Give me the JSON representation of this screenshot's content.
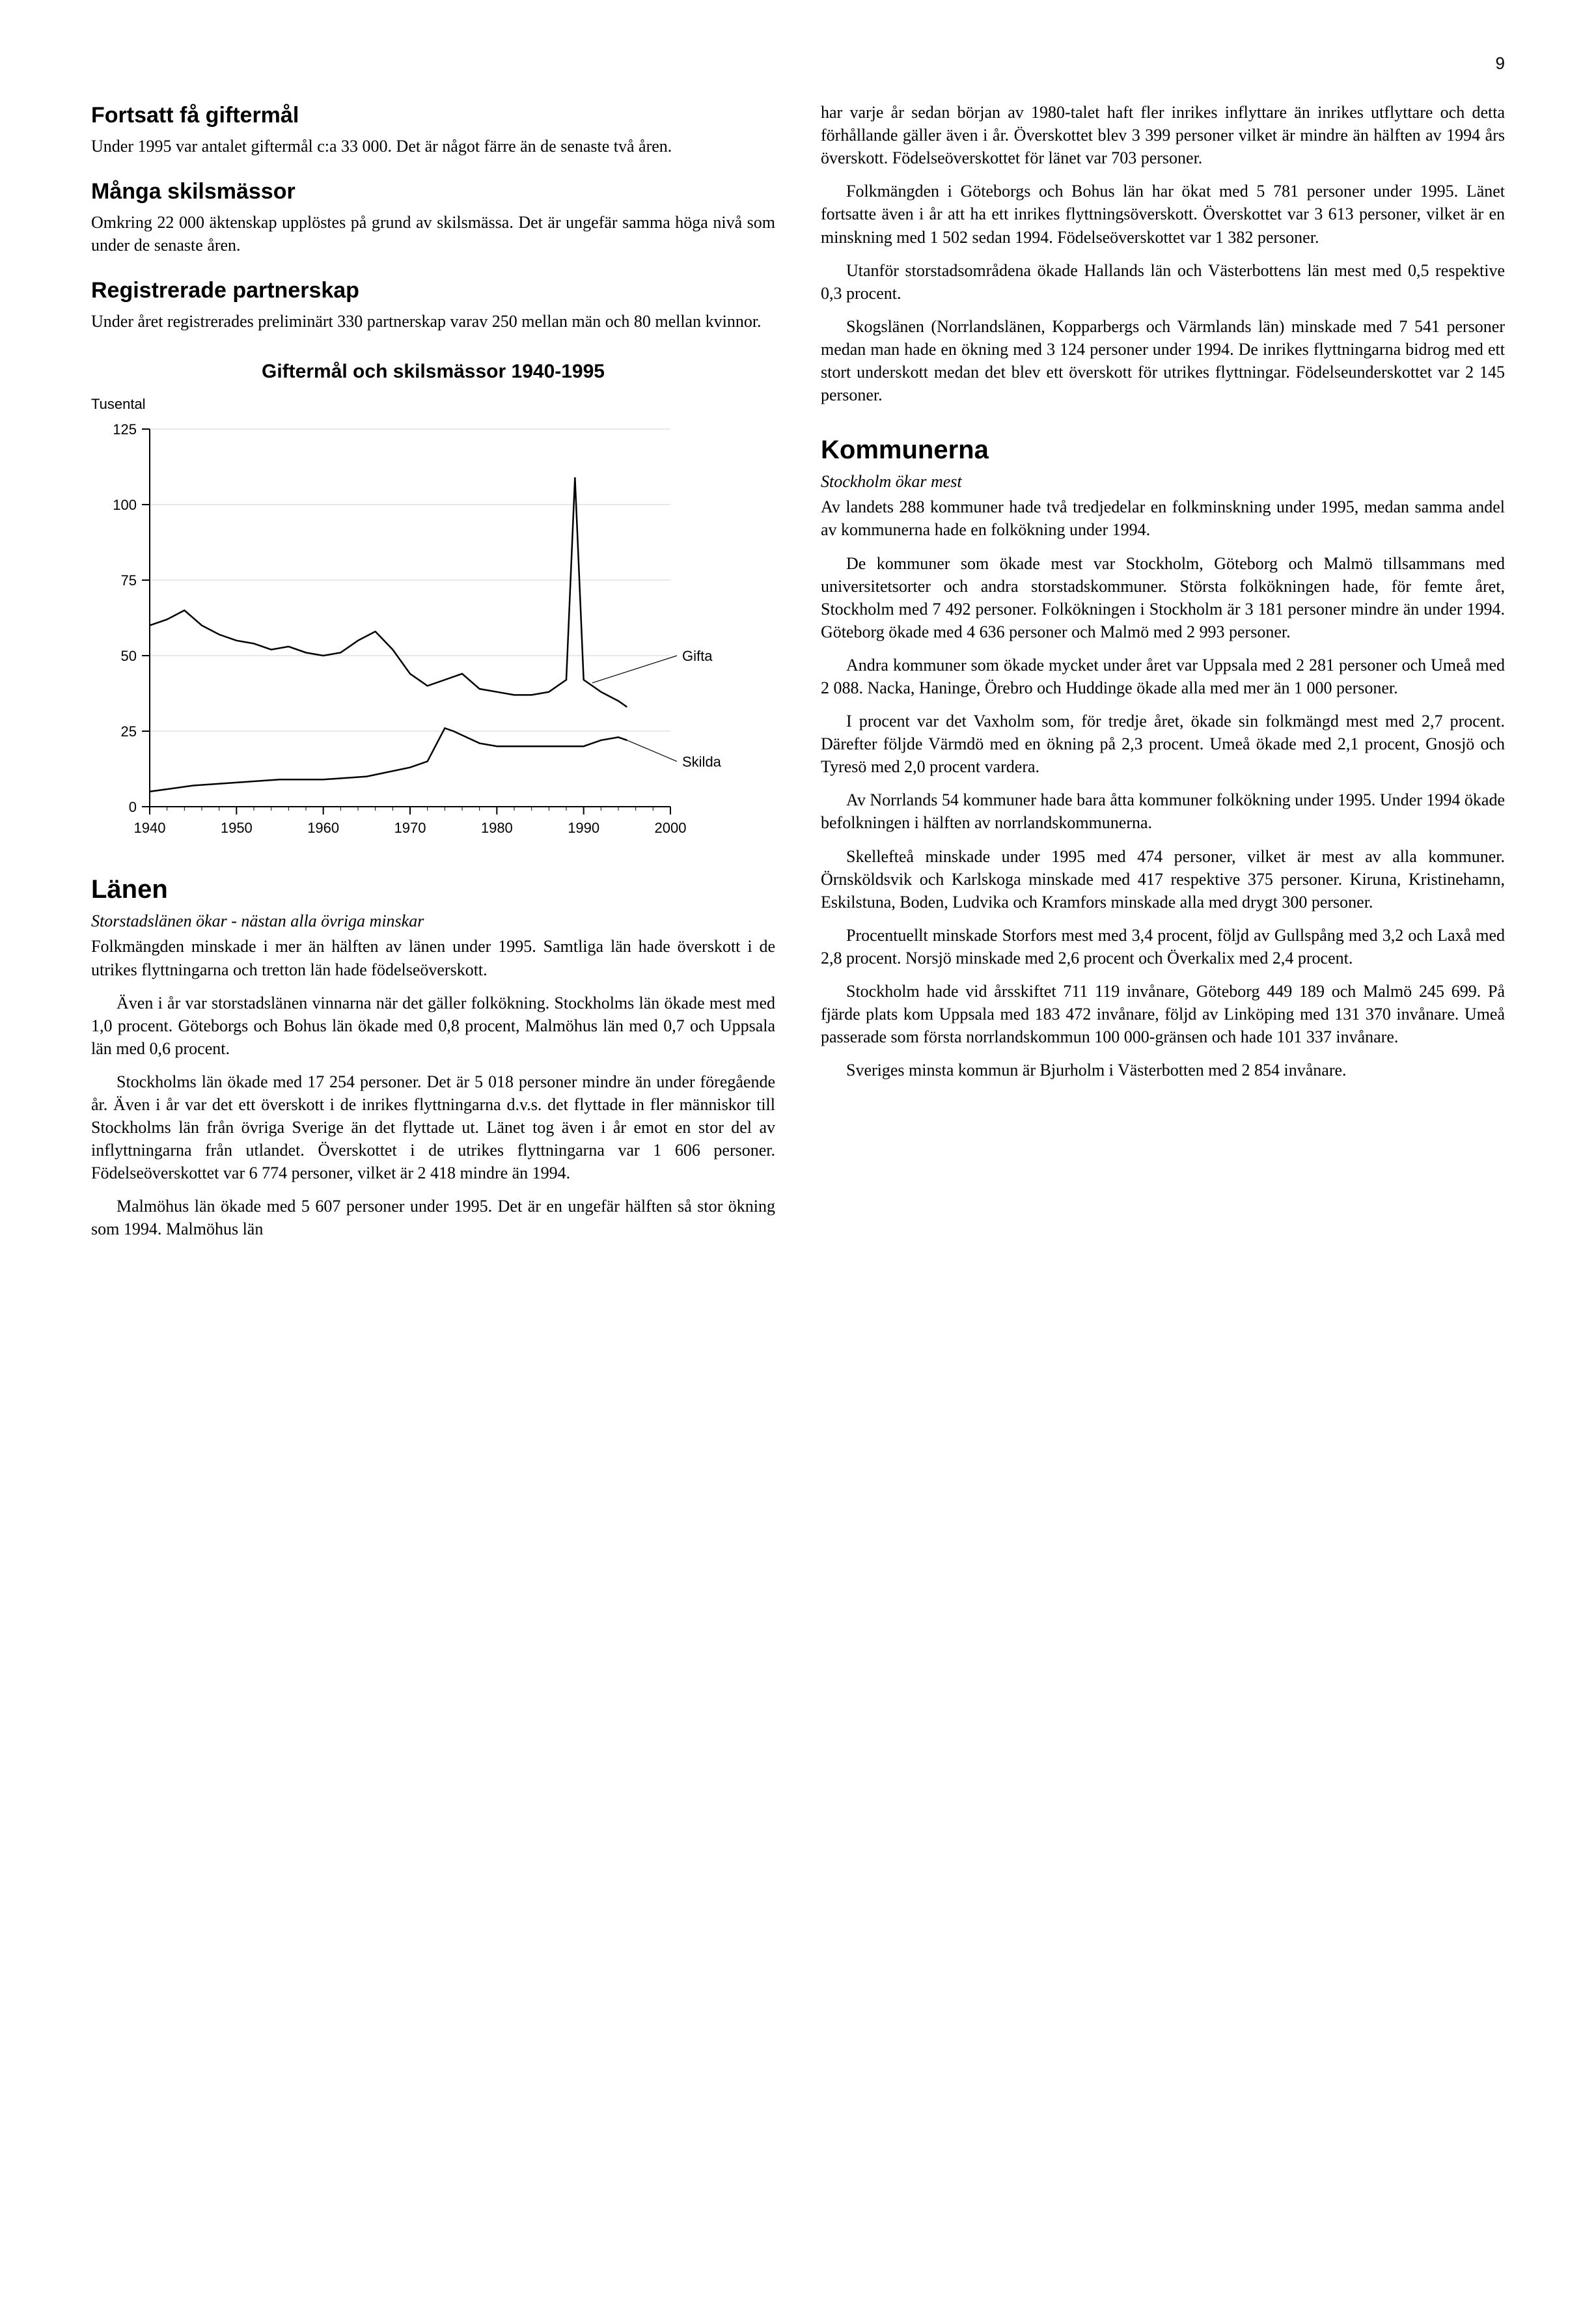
{
  "page_number": "9",
  "left": {
    "s1": {
      "title": "Fortsatt få giftermål",
      "body": "Under 1995 var antalet giftermål c:a 33 000. Det är något färre än de senaste två åren."
    },
    "s2": {
      "title": "Många skilsmässor",
      "body": "Omkring 22 000 äktenskap upplöstes på grund av skilsmässa. Det är ungefär samma höga nivå som under de senaste åren."
    },
    "s3": {
      "title": "Registrerade partnerskap",
      "body": "Under året registrerades preliminärt 330 partnerskap varav 250 mellan män och 80 mellan kvinnor."
    },
    "chart": {
      "type": "line",
      "title": "Giftermål och skilsmässor 1940-1995",
      "ylabel": "Tusental",
      "xlim": [
        1940,
        2000
      ],
      "ylim": [
        0,
        125
      ],
      "xtick_step": 10,
      "ytick_step": 25,
      "grid_color": "#d0d0d0",
      "axis_color": "#000000",
      "background_color": "#ffffff",
      "tick_fontsize": 22,
      "line_width": 2.5,
      "series": [
        {
          "name": "Gifta",
          "label": "Gifta",
          "color": "#000000",
          "data": [
            [
              1940,
              60
            ],
            [
              1942,
              62
            ],
            [
              1944,
              65
            ],
            [
              1946,
              60
            ],
            [
              1948,
              57
            ],
            [
              1950,
              55
            ],
            [
              1952,
              54
            ],
            [
              1954,
              52
            ],
            [
              1956,
              53
            ],
            [
              1958,
              51
            ],
            [
              1960,
              50
            ],
            [
              1962,
              51
            ],
            [
              1964,
              55
            ],
            [
              1966,
              58
            ],
            [
              1968,
              52
            ],
            [
              1970,
              44
            ],
            [
              1972,
              40
            ],
            [
              1974,
              42
            ],
            [
              1976,
              44
            ],
            [
              1978,
              39
            ],
            [
              1980,
              38
            ],
            [
              1982,
              37
            ],
            [
              1984,
              37
            ],
            [
              1986,
              38
            ],
            [
              1988,
              42
            ],
            [
              1989,
              109
            ],
            [
              1990,
              42
            ],
            [
              1992,
              38
            ],
            [
              1994,
              35
            ],
            [
              1995,
              33
            ]
          ]
        },
        {
          "name": "Skilda",
          "label": "Skilda",
          "color": "#000000",
          "data": [
            [
              1940,
              5
            ],
            [
              1945,
              7
            ],
            [
              1950,
              8
            ],
            [
              1955,
              9
            ],
            [
              1960,
              9
            ],
            [
              1965,
              10
            ],
            [
              1970,
              13
            ],
            [
              1972,
              15
            ],
            [
              1974,
              26
            ],
            [
              1975,
              25
            ],
            [
              1978,
              21
            ],
            [
              1980,
              20
            ],
            [
              1985,
              20
            ],
            [
              1990,
              20
            ],
            [
              1992,
              22
            ],
            [
              1994,
              23
            ],
            [
              1995,
              22
            ]
          ]
        }
      ],
      "series_labels": {
        "gifta": "Gifta",
        "skilda": "Skilda"
      }
    },
    "s4": {
      "title": "Länen",
      "subtitle": "Storstadslänen ökar - nästan alla övriga minskar",
      "p1": "Folkmängden minskade i mer än hälften av länen under 1995. Samtliga län hade överskott i de utrikes flyttningarna och tretton län hade födelseöverskott.",
      "p2": "Även i år var storstadslänen vinnarna när det gäller folkökning. Stockholms län ökade mest med 1,0 procent. Göteborgs och Bohus län ökade med 0,8 procent, Malmöhus län med 0,7 och Uppsala län med 0,6 procent.",
      "p3": "Stockholms län ökade med 17 254 personer. Det är 5 018 personer mindre än under föregående år. Även i år var det ett överskott i de inrikes flyttningarna  d.v.s. det flyttade in fler människor till Stockholms län från övriga Sverige än det flyttade ut. Länet tog även i år emot en stor del av inflyttningarna från utlandet. Överskottet i de utrikes flyttningarna var 1 606 personer. Födelseöverskottet var 6 774 personer, vilket är 2 418 mindre än 1994.",
      "p4": "Malmöhus län ökade med 5 607 personer under 1995. Det är en ungefär hälften så stor ökning som 1994. Malmöhus län"
    }
  },
  "right": {
    "p1": "har varje år sedan början av 1980-talet haft fler inrikes inflyttare än inrikes utflyttare och detta förhållande gäller även i år. Överskottet blev 3 399 personer vilket är mindre än hälften av 1994 års överskott. Födelseöverskottet för länet var 703 personer.",
    "p2": "Folkmängden i Göteborgs och Bohus län har ökat med 5 781 personer under 1995. Länet fortsatte även i år att ha ett inrikes flyttningsöverskott. Överskottet var 3 613 personer, vilket är en minskning med 1 502 sedan 1994. Födelseöverskottet var 1 382 personer.",
    "p3": "Utanför storstadsområdena ökade Hallands län och Västerbottens län  mest med  0,5 respektive 0,3 procent.",
    "p4": "Skogslänen (Norrlandslänen, Kopparbergs och Värmlands län) minskade med 7 541 personer medan man hade en ökning med 3 124 personer under 1994. De inrikes flyttningarna bidrog med ett stort underskott medan det blev ett överskott för utrikes flyttningar. Födelseunderskottet var 2 145 personer.",
    "s5": {
      "title": "Kommunerna",
      "subtitle": "Stockholm ökar mest",
      "p1": "Av landets 288 kommuner hade två tredjedelar en folkminskning under 1995, medan samma andel av kommunerna hade en folkökning under 1994.",
      "p2": "De kommuner som ökade mest var Stockholm, Göteborg och Malmö tillsammans med universitetsorter och andra storstadskommuner. Största folkökningen hade, för femte året, Stockholm med 7 492 personer. Folkökningen i Stockholm är 3 181 personer mindre  än under 1994. Göteborg ökade med 4 636 personer och Malmö med 2 993 personer.",
      "p3": "Andra kommuner som ökade mycket under året var Uppsala med 2 281 personer och Umeå med 2 088. Nacka, Haninge, Örebro och Huddinge ökade alla med mer än 1 000 personer.",
      "p4": "I procent var det Vaxholm som, för tredje året, ökade sin folkmängd mest med 2,7 procent. Därefter följde Värmdö med en ökning på 2,3 procent. Umeå ökade med 2,1 procent, Gnosjö och Tyresö med 2,0 procent vardera.",
      "p5": "Av Norrlands 54 kommuner hade bara åtta kommuner folkökning under 1995. Under 1994 ökade befolkningen i hälften av norrlandskommunerna.",
      "p6": "Skellefteå minskade under 1995 med 474 personer, vilket är mest av alla kommuner. Örnsköldsvik och Karlskoga minskade med 417 respektive 375 personer. Kiruna, Kristinehamn, Eskilstuna, Boden, Ludvika och Kramfors minskade alla med drygt 300 personer.",
      "p7": "Procentuellt minskade Storfors mest med 3,4 procent, följd av Gullspång med 3,2 och Laxå med 2,8 procent. Norsjö minskade med 2,6 procent och Överkalix med 2,4 procent.",
      "p8": "Stockholm hade vid årsskiftet 711 119 invånare, Göteborg 449 189 och Malmö 245 699. På fjärde plats kom Uppsala med 183 472 invånare, följd av Linköping med 131 370 invånare. Umeå passerade som första norrlandskommun 100 000-gränsen och hade 101 337 invånare.",
      "p9": "Sveriges minsta kommun är Bjurholm i Västerbotten med 2 854 invånare."
    }
  }
}
